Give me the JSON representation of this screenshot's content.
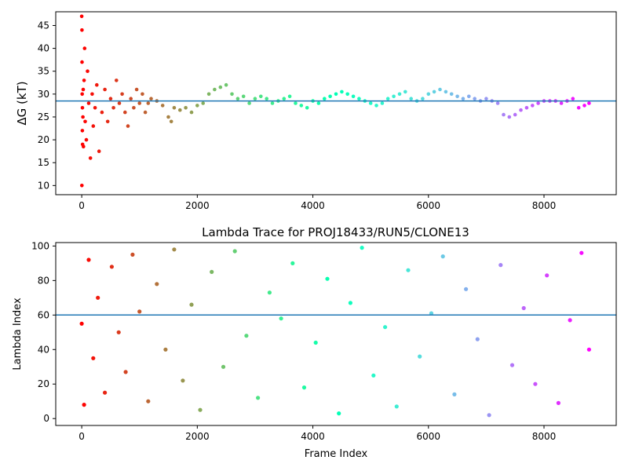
{
  "chart_data": [
    {
      "type": "scatter",
      "title": "",
      "xlabel": "",
      "ylabel": "ΔG (kT)",
      "xlim": [
        -450,
        9250
      ],
      "ylim": [
        8,
        48
      ],
      "xticks": [
        0,
        2000,
        4000,
        6000,
        8000
      ],
      "yticks": [
        10,
        15,
        20,
        25,
        30,
        35,
        40,
        45
      ],
      "colormap": "rainbow",
      "hline": 28.5,
      "hline_color": "#1f77b4",
      "series": [
        {
          "x": [
            0,
            2,
            4,
            5,
            8,
            10,
            12,
            15,
            20,
            25,
            30,
            40,
            50,
            60,
            80,
            100,
            120,
            150,
            180,
            200,
            230,
            260,
            300,
            350,
            400,
            450,
            500,
            550,
            600,
            650,
            700,
            750,
            800,
            850,
            900,
            950,
            1000,
            1050,
            1100,
            1150,
            1200,
            1300,
            1400,
            1500,
            1550,
            1600,
            1700,
            1800,
            1900,
            2000,
            2100,
            2200,
            2300,
            2400,
            2500,
            2600,
            2700,
            2800,
            2900,
            3000,
            3100,
            3200,
            3300,
            3400,
            3500,
            3600,
            3700,
            3800,
            3900,
            4000,
            4100,
            4200,
            4300,
            4400,
            4500,
            4600,
            4700,
            4800,
            4900,
            5000,
            5100,
            5200,
            5300,
            5400,
            5500,
            5600,
            5700,
            5800,
            5900,
            6000,
            6100,
            6200,
            6300,
            6400,
            6500,
            6600,
            6700,
            6800,
            6900,
            7000,
            7100,
            7200,
            7300,
            7400,
            7500,
            7600,
            7700,
            7800,
            7900,
            8000,
            8100,
            8200,
            8300,
            8400,
            8500,
            8600,
            8700,
            8780
          ],
          "y": [
            47,
            10,
            44,
            37,
            30,
            22,
            27,
            19,
            25,
            31,
            18.5,
            33,
            40,
            24,
            20,
            35,
            28,
            16,
            30,
            23,
            27,
            32,
            17.5,
            26,
            31,
            24,
            29,
            27,
            33,
            28,
            30,
            26,
            23,
            29,
            27,
            31,
            28,
            30,
            26,
            28,
            29,
            28.5,
            27.5,
            25,
            24,
            27,
            26.5,
            27,
            26,
            27.5,
            28,
            30,
            31,
            31.5,
            32,
            30,
            29,
            29.5,
            28,
            29,
            29.5,
            29,
            28,
            28.5,
            29,
            29.5,
            28,
            27.5,
            27,
            28.5,
            28,
            29,
            29.5,
            30,
            30.5,
            30,
            29.5,
            29,
            28.5,
            28,
            27.5,
            28,
            29,
            29.5,
            30,
            30.5,
            29,
            28.5,
            29,
            30,
            30.5,
            31,
            30.5,
            30,
            29.5,
            29,
            29.5,
            29,
            28.5,
            29,
            28.5,
            28,
            25.5,
            25,
            25.5,
            26.5,
            27,
            27.5,
            28,
            28.5,
            28.5,
            28.5,
            28,
            28.5,
            29,
            27,
            27.5,
            28
          ]
        }
      ]
    },
    {
      "type": "scatter",
      "title": "Lambda Trace for PROJ18433/RUN5/CLONE13",
      "xlabel": "Frame Index",
      "ylabel": "Lambda Index",
      "xlim": [
        -450,
        9250
      ],
      "ylim": [
        -4,
        102
      ],
      "xticks": [
        0,
        2000,
        4000,
        6000,
        8000
      ],
      "yticks": [
        0,
        20,
        40,
        60,
        80,
        100
      ],
      "colormap": "rainbow",
      "hline": 60,
      "hline_color": "#1f77b4",
      "series": [
        {
          "x": [
            0,
            40,
            120,
            200,
            280,
            400,
            520,
            640,
            760,
            880,
            1000,
            1150,
            1300,
            1450,
            1600,
            1750,
            1900,
            2050,
            2250,
            2450,
            2650,
            2850,
            3050,
            3250,
            3450,
            3650,
            3850,
            4050,
            4250,
            4450,
            4650,
            4850,
            5050,
            5250,
            5450,
            5650,
            5850,
            6050,
            6250,
            6450,
            6650,
            6850,
            7050,
            7250,
            7450,
            7650,
            7850,
            8050,
            8250,
            8450,
            8650,
            8780
          ],
          "y": [
            55,
            8,
            92,
            35,
            70,
            15,
            88,
            50,
            27,
            95,
            62,
            10,
            78,
            40,
            98,
            22,
            66,
            5,
            85,
            30,
            97,
            48,
            12,
            73,
            58,
            90,
            18,
            44,
            81,
            3,
            67,
            99,
            25,
            53,
            7,
            86,
            36,
            61,
            94,
            14,
            75,
            46,
            2,
            89,
            31,
            64,
            20,
            83,
            9,
            57,
            96,
            40
          ]
        }
      ]
    }
  ]
}
